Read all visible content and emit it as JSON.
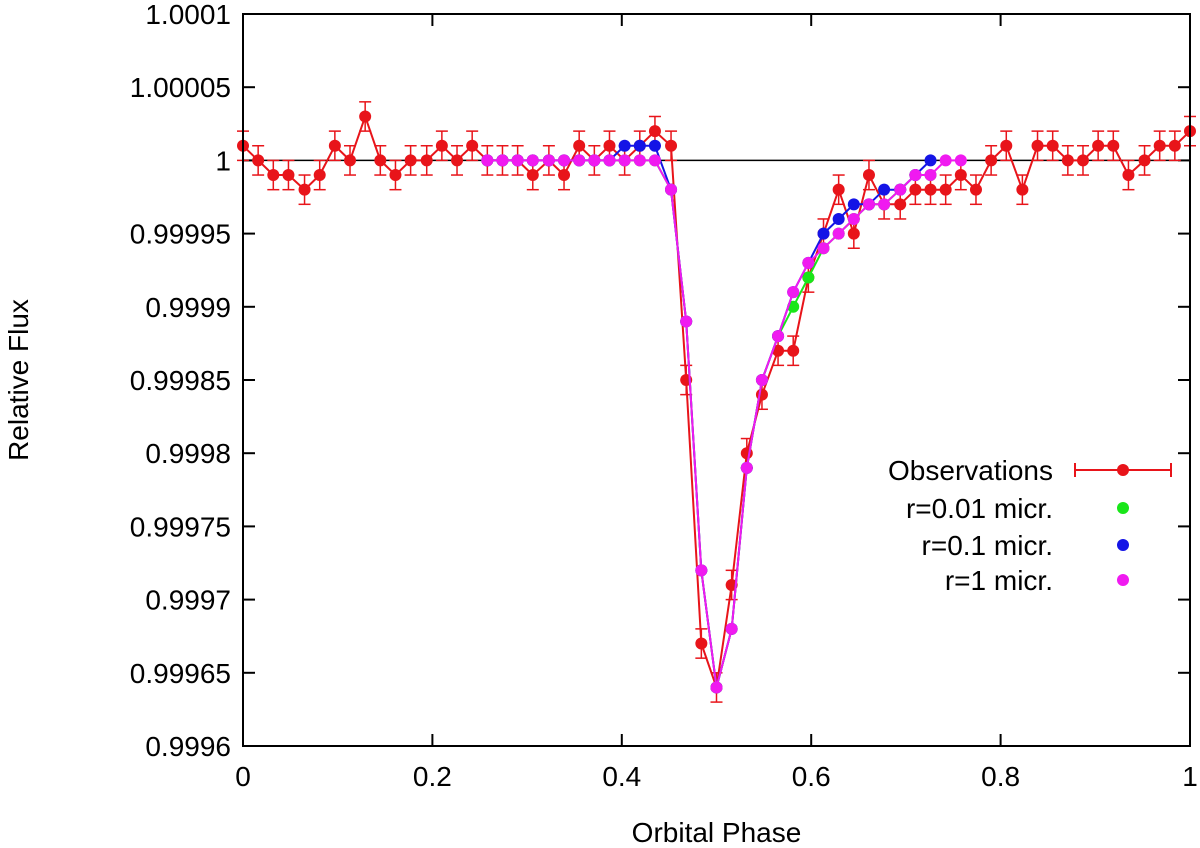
{
  "chart_data": {
    "type": "scatter",
    "title": "",
    "xlabel": "Orbital Phase",
    "ylabel": "Relative Flux",
    "xlim": [
      0,
      1
    ],
    "ylim": [
      0.9996,
      1.0001
    ],
    "x_ticks": [
      0,
      0.2,
      0.4,
      0.6,
      0.8,
      1
    ],
    "x_tick_labels": [
      "0",
      "0.2",
      "0.4",
      "0.6",
      "0.8",
      "1"
    ],
    "y_ticks": [
      0.9996,
      0.99965,
      0.9997,
      0.99975,
      0.9998,
      0.99985,
      0.9999,
      0.99995,
      1,
      1.00005,
      1.0001
    ],
    "y_tick_labels": [
      "0.9996",
      "0.99965",
      "0.9997",
      "0.99975",
      "0.9998",
      "0.99985",
      "0.9999",
      "0.99995",
      "1",
      "1.00005",
      "1.0001"
    ],
    "reference_line": 1.0,
    "legend_position": "right-center",
    "series": [
      {
        "name": "Observations",
        "color": "#e8141a",
        "error_bars": true,
        "points": [
          [
            0.0,
            1.00001
          ],
          [
            0.016,
            1.0
          ],
          [
            0.032,
            0.99999
          ],
          [
            0.048,
            0.99999
          ],
          [
            0.065,
            0.99998
          ],
          [
            0.081,
            0.99999
          ],
          [
            0.097,
            1.00001
          ],
          [
            0.113,
            1.0
          ],
          [
            0.129,
            1.00003
          ],
          [
            0.145,
            1.0
          ],
          [
            0.161,
            0.99999
          ],
          [
            0.177,
            1.0
          ],
          [
            0.194,
            1.0
          ],
          [
            0.21,
            1.00001
          ],
          [
            0.226,
            1.0
          ],
          [
            0.242,
            1.00001
          ],
          [
            0.258,
            1.0
          ],
          [
            0.274,
            1.0
          ],
          [
            0.29,
            1.0
          ],
          [
            0.306,
            0.99999
          ],
          [
            0.323,
            1.0
          ],
          [
            0.339,
            0.99999
          ],
          [
            0.355,
            1.00001
          ],
          [
            0.371,
            1.0
          ],
          [
            0.387,
            1.00001
          ],
          [
            0.403,
            1.0
          ],
          [
            0.419,
            1.00001
          ],
          [
            0.435,
            1.00002
          ],
          [
            0.452,
            1.00001
          ],
          [
            0.468,
            0.99985
          ],
          [
            0.484,
            0.99967
          ],
          [
            0.5,
            0.99964
          ],
          [
            0.516,
            0.99971
          ],
          [
            0.532,
            0.9998
          ],
          [
            0.548,
            0.99984
          ],
          [
            0.565,
            0.99987
          ],
          [
            0.581,
            0.99987
          ],
          [
            0.597,
            0.99992
          ],
          [
            0.613,
            0.99995
          ],
          [
            0.629,
            0.99998
          ],
          [
            0.645,
            0.99995
          ],
          [
            0.661,
            0.99999
          ],
          [
            0.677,
            0.99997
          ],
          [
            0.694,
            0.99997
          ],
          [
            0.71,
            0.99998
          ],
          [
            0.726,
            0.99998
          ],
          [
            0.742,
            0.99998
          ],
          [
            0.758,
            0.99999
          ],
          [
            0.774,
            0.99998
          ],
          [
            0.79,
            1.0
          ],
          [
            0.806,
            1.00001
          ],
          [
            0.823,
            0.99998
          ],
          [
            0.839,
            1.00001
          ],
          [
            0.855,
            1.00001
          ],
          [
            0.871,
            1.0
          ],
          [
            0.887,
            1.0
          ],
          [
            0.903,
            1.00001
          ],
          [
            0.919,
            1.00001
          ],
          [
            0.935,
            0.99999
          ],
          [
            0.952,
            1.0
          ],
          [
            0.968,
            1.00001
          ],
          [
            0.984,
            1.00001
          ],
          [
            1.0,
            1.00002
          ]
        ],
        "error": 1e-05
      },
      {
        "name": "r=0.01 micr.",
        "color": "#19e619",
        "points": [
          [
            0.258,
            1.0
          ],
          [
            0.274,
            1.0
          ],
          [
            0.29,
            1.0
          ],
          [
            0.306,
            1.0
          ],
          [
            0.323,
            1.0
          ],
          [
            0.339,
            1.0
          ],
          [
            0.355,
            1.0
          ],
          [
            0.371,
            1.0
          ],
          [
            0.387,
            1.0
          ],
          [
            0.403,
            1.0
          ],
          [
            0.419,
            1.0
          ],
          [
            0.435,
            1.0
          ],
          [
            0.452,
            0.99998
          ],
          [
            0.468,
            0.99989
          ],
          [
            0.484,
            0.99972
          ],
          [
            0.5,
            0.99964
          ],
          [
            0.516,
            0.99968
          ],
          [
            0.532,
            0.99979
          ],
          [
            0.548,
            0.99985
          ],
          [
            0.565,
            0.99988
          ],
          [
            0.581,
            0.9999
          ],
          [
            0.597,
            0.99992
          ],
          [
            0.613,
            0.99994
          ],
          [
            0.629,
            0.99995
          ],
          [
            0.645,
            0.99996
          ],
          [
            0.661,
            0.99997
          ],
          [
            0.677,
            0.99997
          ],
          [
            0.694,
            0.99998
          ],
          [
            0.71,
            0.99999
          ],
          [
            0.726,
            0.99999
          ]
        ]
      },
      {
        "name": "r=0.1 micr.",
        "color": "#1414e6",
        "points": [
          [
            0.258,
            1.0
          ],
          [
            0.274,
            1.0
          ],
          [
            0.29,
            1.0
          ],
          [
            0.306,
            1.0
          ],
          [
            0.323,
            1.0
          ],
          [
            0.339,
            1.0
          ],
          [
            0.355,
            1.0
          ],
          [
            0.371,
            1.0
          ],
          [
            0.387,
            1.0
          ],
          [
            0.403,
            1.00001
          ],
          [
            0.419,
            1.00001
          ],
          [
            0.435,
            1.00001
          ],
          [
            0.452,
            0.99998
          ],
          [
            0.468,
            0.99989
          ],
          [
            0.484,
            0.99972
          ],
          [
            0.5,
            0.99964
          ],
          [
            0.516,
            0.99968
          ],
          [
            0.532,
            0.99979
          ],
          [
            0.548,
            0.99985
          ],
          [
            0.565,
            0.99988
          ],
          [
            0.581,
            0.99991
          ],
          [
            0.597,
            0.99993
          ],
          [
            0.613,
            0.99995
          ],
          [
            0.629,
            0.99996
          ],
          [
            0.645,
            0.99997
          ],
          [
            0.661,
            0.99997
          ],
          [
            0.677,
            0.99998
          ],
          [
            0.694,
            0.99998
          ],
          [
            0.71,
            0.99999
          ],
          [
            0.726,
            1.0
          ]
        ]
      },
      {
        "name": "r=1 micr.",
        "color": "#f01af0",
        "points": [
          [
            0.258,
            1.0
          ],
          [
            0.274,
            1.0
          ],
          [
            0.29,
            1.0
          ],
          [
            0.306,
            1.0
          ],
          [
            0.323,
            1.0
          ],
          [
            0.339,
            1.0
          ],
          [
            0.355,
            1.0
          ],
          [
            0.371,
            1.0
          ],
          [
            0.387,
            1.0
          ],
          [
            0.403,
            1.0
          ],
          [
            0.419,
            1.0
          ],
          [
            0.435,
            1.0
          ],
          [
            0.452,
            0.99998
          ],
          [
            0.468,
            0.99989
          ],
          [
            0.484,
            0.99972
          ],
          [
            0.5,
            0.99964
          ],
          [
            0.516,
            0.99968
          ],
          [
            0.532,
            0.99979
          ],
          [
            0.548,
            0.99985
          ],
          [
            0.565,
            0.99988
          ],
          [
            0.581,
            0.99991
          ],
          [
            0.597,
            0.99993
          ],
          [
            0.613,
            0.99994
          ],
          [
            0.629,
            0.99995
          ],
          [
            0.645,
            0.99996
          ],
          [
            0.661,
            0.99997
          ],
          [
            0.677,
            0.99997
          ],
          [
            0.694,
            0.99998
          ],
          [
            0.71,
            0.99999
          ],
          [
            0.726,
            0.99999
          ],
          [
            0.742,
            1.0
          ],
          [
            0.758,
            1.0
          ]
        ]
      }
    ]
  }
}
